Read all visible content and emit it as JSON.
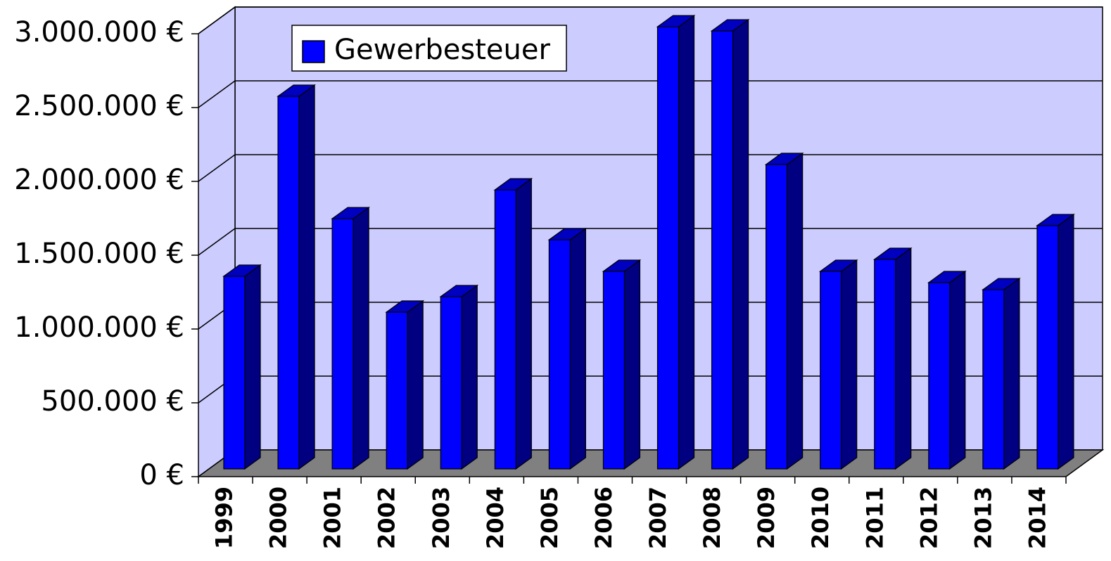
{
  "chart_data": {
    "type": "bar3d",
    "categories": [
      "1999",
      "2000",
      "2001",
      "2002",
      "2003",
      "2004",
      "2005",
      "2006",
      "2007",
      "2008",
      "2009",
      "2010",
      "2011",
      "2012",
      "2013",
      "2014"
    ],
    "series": [
      {
        "name": "Gewerbesteuer",
        "color": "#0000ff",
        "values": [
          1305000,
          2524000,
          1695000,
          1062000,
          1167000,
          1890000,
          1552000,
          1338000,
          2995000,
          2967000,
          2062000,
          1338000,
          1419000,
          1262000,
          1214000,
          1648000
        ]
      }
    ],
    "ylim": [
      0,
      3000000
    ],
    "yticks": [
      {
        "value": 0,
        "label": "0 €"
      },
      {
        "value": 500000,
        "label": "500.000 €"
      },
      {
        "value": 1000000,
        "label": "1.000.000 €"
      },
      {
        "value": 1500000,
        "label": "1.500.000 €"
      },
      {
        "value": 2000000,
        "label": "2.000.000 €"
      },
      {
        "value": 2500000,
        "label": "2.500.000 €"
      },
      {
        "value": 3000000,
        "label": "3.000.000 €"
      }
    ],
    "grid": true,
    "legend": "top-left"
  }
}
